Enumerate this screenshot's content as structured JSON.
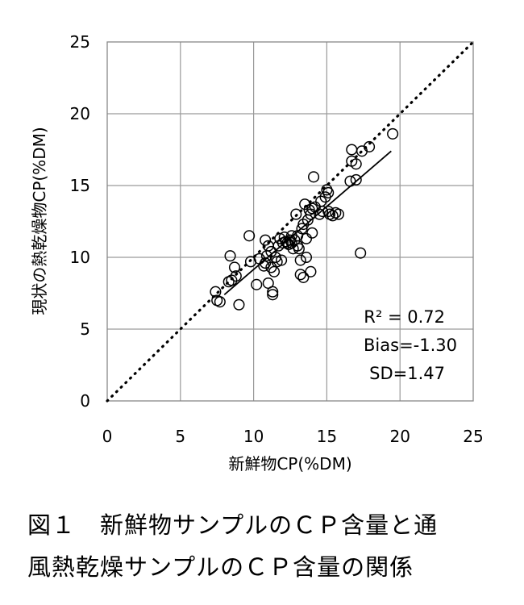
{
  "chart_data": {
    "type": "scatter",
    "xlabel": "新鮮物CP(%DM)",
    "ylabel": "現状の熱乾燥物CP(%DM)",
    "xlim": [
      0,
      25
    ],
    "ylim": [
      0,
      25
    ],
    "x_ticks": [
      "0",
      "5",
      "10",
      "15",
      "20",
      "25"
    ],
    "y_ticks": [
      "0",
      "5",
      "10",
      "15",
      "20",
      "25"
    ],
    "grid": true,
    "identity_line": "dotted 1:1",
    "regression_line": {
      "x": [
        8.0,
        19.4
      ],
      "y": [
        7.4,
        17.4
      ]
    },
    "annotations": [
      "R² = 0.72",
      "Bias=-1.30",
      "SD=1.47"
    ],
    "points": [
      [
        7.4,
        7.6
      ],
      [
        7.5,
        7.0
      ],
      [
        7.7,
        6.9
      ],
      [
        8.3,
        8.3
      ],
      [
        8.5,
        8.4
      ],
      [
        8.4,
        10.1
      ],
      [
        8.7,
        9.3
      ],
      [
        8.8,
        8.7
      ],
      [
        9.0,
        6.7
      ],
      [
        9.7,
        11.5
      ],
      [
        9.8,
        9.7
      ],
      [
        10.2,
        8.1
      ],
      [
        10.4,
        9.9
      ],
      [
        10.7,
        9.4
      ],
      [
        10.8,
        11.2
      ],
      [
        10.8,
        9.6
      ],
      [
        10.9,
        10.1
      ],
      [
        11.0,
        8.2
      ],
      [
        11.0,
        10.8
      ],
      [
        11.2,
        9.3
      ],
      [
        11.2,
        10.4
      ],
      [
        11.3,
        7.6
      ],
      [
        11.3,
        7.4
      ],
      [
        11.4,
        9.0
      ],
      [
        11.5,
        10.0
      ],
      [
        11.6,
        9.7
      ],
      [
        11.7,
        10.8
      ],
      [
        11.8,
        11.3
      ],
      [
        11.9,
        9.8
      ],
      [
        12.0,
        11.0
      ],
      [
        12.1,
        11.4
      ],
      [
        12.2,
        11.1
      ],
      [
        12.3,
        11.0
      ],
      [
        12.4,
        10.9
      ],
      [
        12.5,
        11.2
      ],
      [
        12.6,
        11.5
      ],
      [
        12.6,
        11.0
      ],
      [
        12.7,
        10.6
      ],
      [
        12.8,
        11.2
      ],
      [
        12.9,
        13.0
      ],
      [
        13.0,
        10.8
      ],
      [
        13.0,
        11.5
      ],
      [
        13.1,
        10.6
      ],
      [
        13.2,
        9.8
      ],
      [
        13.2,
        8.8
      ],
      [
        13.3,
        12.0
      ],
      [
        13.4,
        12.3
      ],
      [
        13.4,
        8.6
      ],
      [
        13.5,
        13.7
      ],
      [
        13.6,
        11.3
      ],
      [
        13.6,
        10.0
      ],
      [
        13.7,
        12.6
      ],
      [
        13.8,
        13.3
      ],
      [
        13.9,
        9.0
      ],
      [
        13.9,
        13.0
      ],
      [
        14.0,
        11.7
      ],
      [
        14.0,
        13.4
      ],
      [
        14.1,
        15.6
      ],
      [
        14.2,
        13.5
      ],
      [
        14.5,
        13.0
      ],
      [
        14.6,
        13.9
      ],
      [
        14.7,
        13.2
      ],
      [
        14.9,
        14.2
      ],
      [
        15.0,
        14.7
      ],
      [
        15.1,
        14.5
      ],
      [
        15.1,
        13.2
      ],
      [
        15.2,
        13.0
      ],
      [
        15.4,
        12.9
      ],
      [
        15.6,
        13.1
      ],
      [
        15.8,
        13.0
      ],
      [
        16.6,
        15.3
      ],
      [
        16.7,
        16.7
      ],
      [
        16.7,
        17.5
      ],
      [
        17.0,
        16.5
      ],
      [
        17.0,
        15.4
      ],
      [
        17.3,
        10.3
      ],
      [
        17.4,
        17.4
      ],
      [
        17.9,
        17.7
      ],
      [
        19.5,
        18.6
      ]
    ]
  },
  "caption": {
    "line1": "図１　新鮮物サンプルのＣＰ含量と通",
    "line2": "風熱乾燥サンプルのＣＰ含量の関係"
  }
}
